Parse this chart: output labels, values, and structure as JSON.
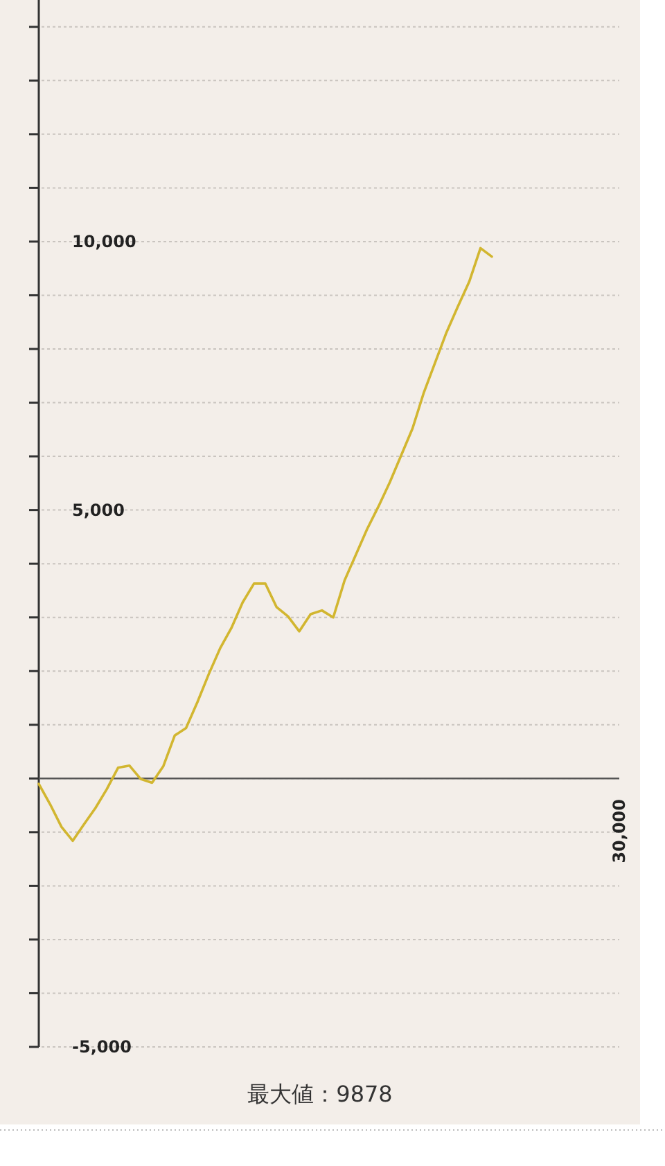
{
  "chart_data": {
    "type": "line",
    "categories": [
      null,
      null,
      null,
      null,
      null,
      null,
      null,
      null,
      null,
      null,
      null,
      null,
      null,
      null,
      null,
      null,
      null,
      null,
      null,
      null,
      null,
      null,
      null,
      null,
      null,
      null,
      null,
      null,
      null,
      null,
      null,
      null,
      null,
      null,
      null,
      null,
      null,
      null,
      null,
      null,
      null
    ],
    "values": [
      -100,
      -480,
      -900,
      -1160,
      -850,
      -550,
      -200,
      200,
      240,
      -10,
      -80,
      230,
      800,
      940,
      1420,
      1940,
      2420,
      2800,
      3280,
      3630,
      3630,
      3190,
      3020,
      2740,
      3060,
      3130,
      3000,
      3690,
      4170,
      4650,
      5070,
      5520,
      6020,
      6520,
      7190,
      7750,
      8310,
      8790,
      9250,
      9878,
      9720
    ],
    "color": "#d2b630",
    "ylim": [
      -5000,
      14500
    ],
    "yticks": [
      {
        "value": -5000,
        "label": "-5,000"
      },
      {
        "value": -4000,
        "label": null
      },
      {
        "value": -3000,
        "label": null
      },
      {
        "value": -2000,
        "label": null
      },
      {
        "value": -1000,
        "label": null
      },
      {
        "value": 0,
        "label": null
      },
      {
        "value": 1000,
        "label": null
      },
      {
        "value": 2000,
        "label": null
      },
      {
        "value": 3000,
        "label": null
      },
      {
        "value": 4000,
        "label": null
      },
      {
        "value": 5000,
        "label": "5,000"
      },
      {
        "value": 6000,
        "label": null
      },
      {
        "value": 7000,
        "label": null
      },
      {
        "value": 8000,
        "label": null
      },
      {
        "value": 9000,
        "label": null
      },
      {
        "value": 10000,
        "label": "10,000"
      },
      {
        "value": 11000,
        "label": null
      },
      {
        "value": 12000,
        "label": null
      },
      {
        "value": 13000,
        "label": null
      },
      {
        "value": 14000,
        "label": null
      }
    ],
    "grid": "y",
    "annotations": [
      "最大値：9878",
      "30,000"
    ]
  }
}
